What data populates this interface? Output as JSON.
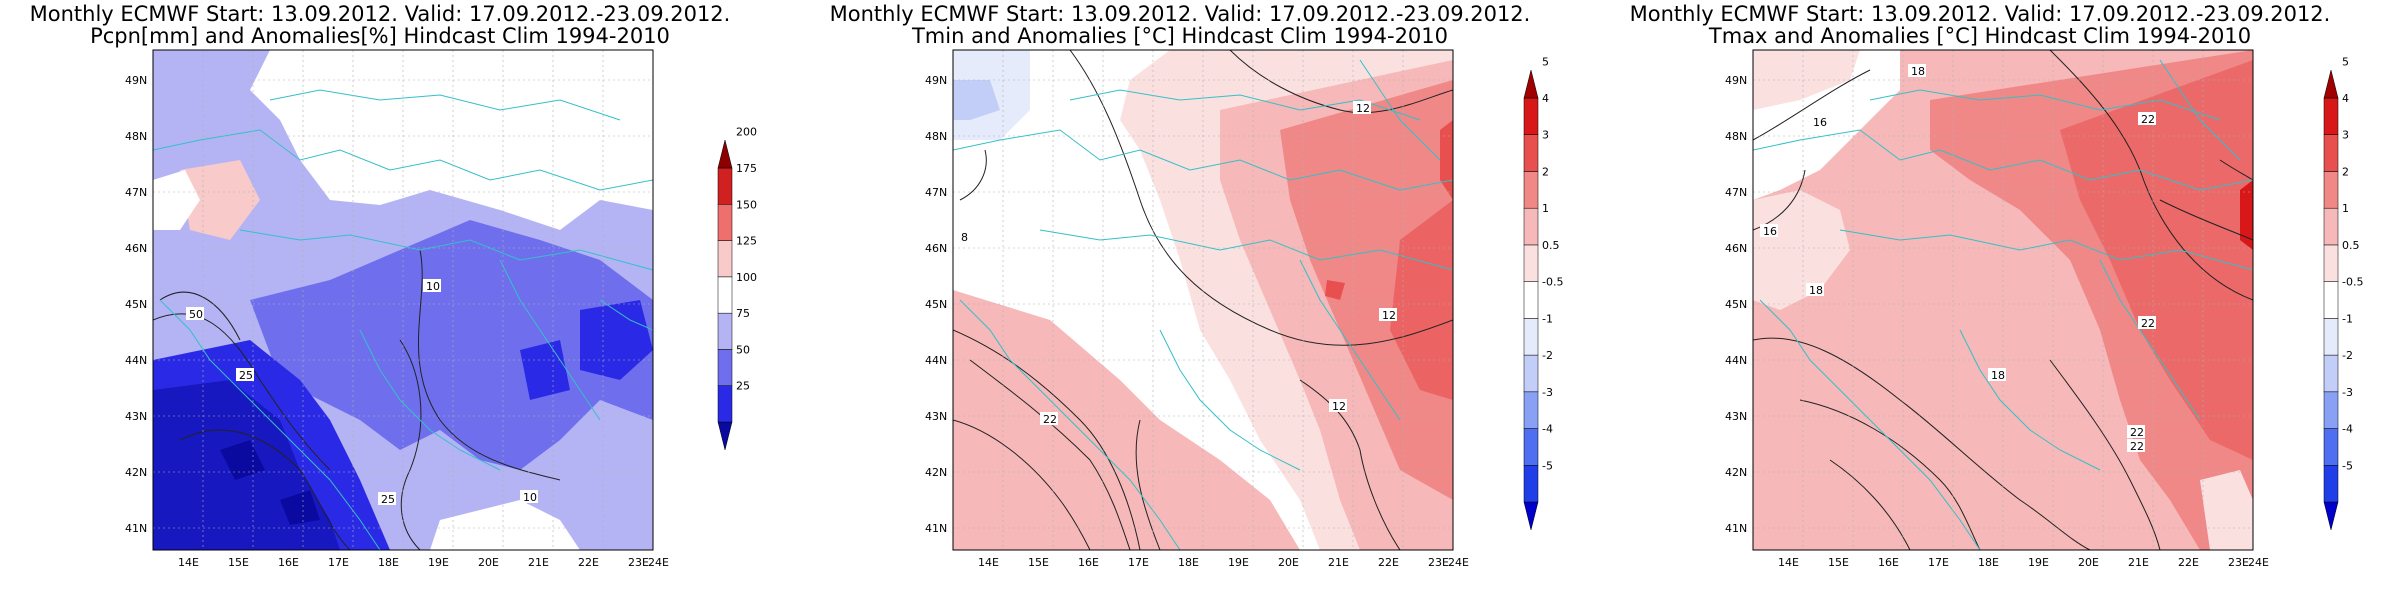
{
  "panels": [
    {
      "id": "pcpn",
      "title_line1": "Monthly ECMWF Start: 13.09.2012. Valid: 17.09.2012.-23.09.2012.",
      "title_line2": "Pcpn[mm] and Anomalies[%] Hindcast Clim 1994-2010",
      "colorbar": {
        "labels": [
          "25",
          "50",
          "75",
          "100",
          "125",
          "150",
          "175",
          "200"
        ],
        "colors": [
          "#0a0aa0",
          "#2a2ae6",
          "#6f6fee",
          "#b4b4f5",
          "#ffffff",
          "#f9caca",
          "#ef6f6f",
          "#d02020",
          "#8c0000"
        ]
      },
      "contour_labels": [
        "10",
        "50",
        "25",
        "25",
        "10"
      ]
    },
    {
      "id": "tmin",
      "title_line1": "Monthly ECMWF Start: 13.09.2012. Valid: 17.09.2012.-23.09.2012.",
      "title_line2": "Tmin and Anomalies [°C] Hindcast Clim 1994-2010",
      "colorbar": {
        "labels": [
          "-5",
          "-4",
          "-3",
          "-2",
          "-1",
          "-0.5",
          "0.5",
          "1",
          "2",
          "3",
          "4",
          "5"
        ],
        "colors": [
          "#0000cc",
          "#1f3ee8",
          "#4f6ef0",
          "#8aa0f5",
          "#c3cef8",
          "#e6ebfb",
          "#ffffff",
          "#fbe0e0",
          "#f6b8b8",
          "#f08888",
          "#e85050",
          "#d81818",
          "#a00000"
        ]
      },
      "contour_labels": [
        "12",
        "8",
        "12",
        "12",
        "22"
      ]
    },
    {
      "id": "tmax",
      "title_line1": "Monthly ECMWF Start: 13.09.2012. Valid: 17.09.2012.-23.09.2012.",
      "title_line2": "Tmax and Anomalies [°C] Hindcast Clim 1994-2010",
      "colorbar": {
        "labels": [
          "-5",
          "-4",
          "-3",
          "-2",
          "-1",
          "-0.5",
          "0.5",
          "1",
          "2",
          "3",
          "4",
          "5"
        ],
        "colors": [
          "#0000cc",
          "#1f3ee8",
          "#4f6ef0",
          "#8aa0f5",
          "#c3cef8",
          "#e6ebfb",
          "#ffffff",
          "#fbe0e0",
          "#f6b8b8",
          "#f08888",
          "#e85050",
          "#d81818",
          "#a00000"
        ]
      },
      "contour_labels": [
        "18",
        "16",
        "16",
        "18",
        "22",
        "22",
        "18",
        "22",
        "22"
      ]
    }
  ],
  "axes": {
    "lat_labels": [
      "49N",
      "48N",
      "47N",
      "46N",
      "45N",
      "44N",
      "43N",
      "42N",
      "41N"
    ],
    "lon_labels": [
      "14E",
      "15E",
      "16E",
      "17E",
      "18E",
      "19E",
      "20E",
      "21E",
      "22E",
      "23E",
      "24E"
    ]
  }
}
